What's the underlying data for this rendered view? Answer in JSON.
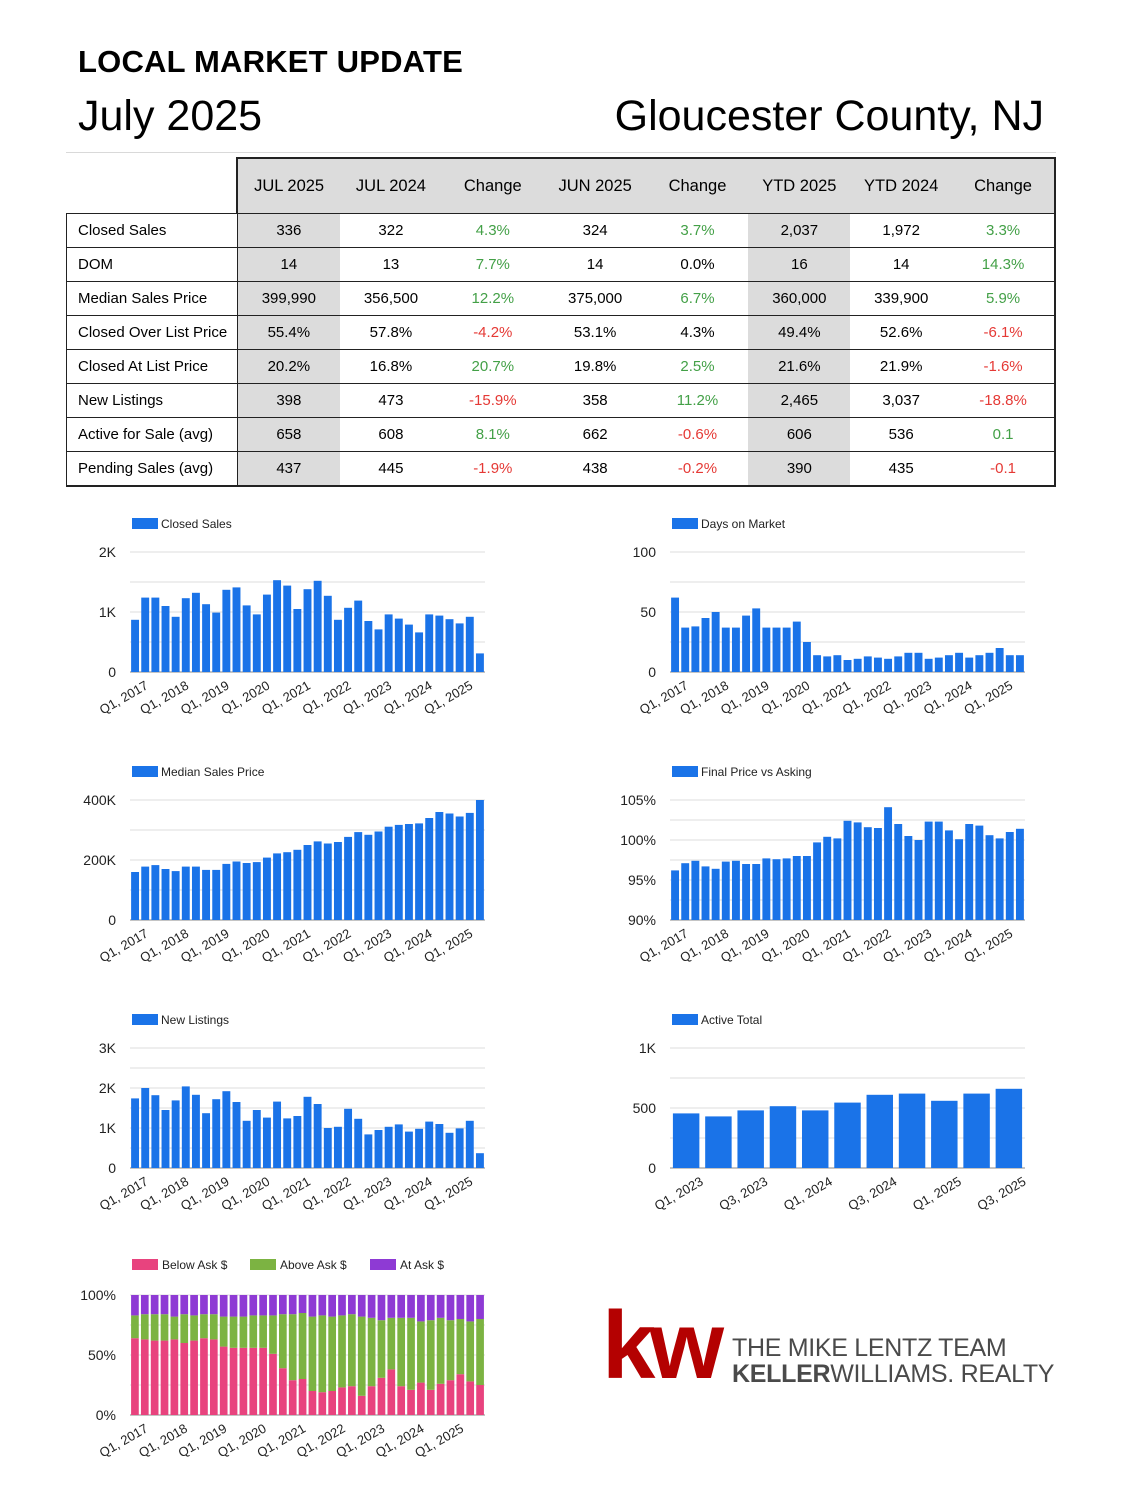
{
  "header": {
    "title": "LOCAL MARKET UPDATE",
    "month": "July 2025",
    "location": "Gloucester County, NJ"
  },
  "table": {
    "columns": [
      "JUL 2025",
      "JUL 2024",
      "Change",
      "JUN 2025",
      "Change",
      "YTD 2025",
      "YTD 2024",
      "Change"
    ],
    "rows": [
      {
        "label": "Closed Sales",
        "values": [
          "336",
          "322",
          "4.3%",
          "324",
          "3.7%",
          "2,037",
          "1,972",
          "3.3%"
        ],
        "colors": [
          "",
          "",
          "pos",
          "",
          "pos",
          "",
          "",
          "pos"
        ]
      },
      {
        "label": "DOM",
        "values": [
          "14",
          "13",
          "7.7%",
          "14",
          "0.0%",
          "16",
          "14",
          "14.3%"
        ],
        "colors": [
          "",
          "",
          "pos",
          "",
          "",
          "",
          "",
          "pos"
        ]
      },
      {
        "label": "Median Sales Price",
        "values": [
          "399,990",
          "356,500",
          "12.2%",
          "375,000",
          "6.7%",
          "360,000",
          "339,900",
          "5.9%"
        ],
        "colors": [
          "",
          "",
          "pos",
          "",
          "pos",
          "",
          "",
          "pos"
        ]
      },
      {
        "label": "Closed Over List Price",
        "values": [
          "55.4%",
          "57.8%",
          "-4.2%",
          "53.1%",
          "4.3%",
          "49.4%",
          "52.6%",
          "-6.1%"
        ],
        "colors": [
          "",
          "",
          "neg",
          "",
          "",
          "",
          "",
          "neg"
        ]
      },
      {
        "label": "Closed At List Price",
        "values": [
          "20.2%",
          "16.8%",
          "20.7%",
          "19.8%",
          "2.5%",
          "21.6%",
          "21.9%",
          "-1.6%"
        ],
        "colors": [
          "",
          "",
          "pos",
          "",
          "pos",
          "",
          "",
          "neg"
        ]
      },
      {
        "label": "New Listings",
        "values": [
          "398",
          "473",
          "-15.9%",
          "358",
          "11.2%",
          "2,465",
          "3,037",
          "-18.8%"
        ],
        "colors": [
          "",
          "",
          "neg",
          "",
          "pos",
          "",
          "",
          "neg"
        ]
      },
      {
        "label": "Active for Sale (avg)",
        "values": [
          "658",
          "608",
          "8.1%",
          "662",
          "-0.6%",
          "606",
          "536",
          "0.1"
        ],
        "colors": [
          "",
          "",
          "pos",
          "",
          "neg",
          "",
          "",
          "pos"
        ]
      },
      {
        "label": "Pending Sales (avg)",
        "values": [
          "437",
          "445",
          "-1.9%",
          "438",
          "-0.2%",
          "390",
          "435",
          "-0.1"
        ],
        "colors": [
          "",
          "",
          "neg",
          "",
          "neg",
          "",
          "",
          "neg"
        ]
      }
    ]
  },
  "colors": {
    "bar": "#1a73e8",
    "below_ask": "#e8437e",
    "above_ask": "#7cb342",
    "at_ask": "#8e3ad4",
    "positive": "#43a047",
    "negative": "#e53935",
    "kw_red": "#b40101",
    "gridline": "#dddddd"
  },
  "chart_data": [
    {
      "id": "closed-sales",
      "type": "bar",
      "legend": [
        "Closed Sales"
      ],
      "ylim": [
        0,
        2000
      ],
      "yticks": [
        "0",
        "1K",
        "2K"
      ],
      "xticks": [
        "Q1, 2017",
        "Q1, 2018",
        "Q1, 2019",
        "Q1, 2020",
        "Q1, 2021",
        "Q1, 2022",
        "Q1, 2023",
        "Q1, 2024",
        "Q1, 2025"
      ],
      "values": [
        870,
        1240,
        1240,
        1100,
        920,
        1230,
        1320,
        1130,
        990,
        1370,
        1410,
        1110,
        960,
        1290,
        1530,
        1440,
        1050,
        1380,
        1520,
        1270,
        870,
        1070,
        1190,
        850,
        710,
        960,
        890,
        790,
        660,
        960,
        940,
        880,
        810,
        920,
        310
      ]
    },
    {
      "id": "days-on-market",
      "type": "bar",
      "legend": [
        "Days on Market"
      ],
      "ylim": [
        0,
        100
      ],
      "yticks": [
        "0",
        "50",
        "100"
      ],
      "xticks": [
        "Q1, 2017",
        "Q1, 2018",
        "Q1, 2019",
        "Q1, 2020",
        "Q1, 2021",
        "Q1, 2022",
        "Q1, 2023",
        "Q1, 2024",
        "Q1, 2025"
      ],
      "values": [
        62,
        37,
        38,
        45,
        50,
        37,
        37,
        47,
        53,
        37,
        37,
        37,
        42,
        25,
        14,
        13,
        14,
        10,
        11,
        13,
        12,
        11,
        13,
        16,
        16,
        11,
        12,
        14,
        16,
        12,
        14,
        16,
        20,
        14,
        14
      ]
    },
    {
      "id": "median-sales-price",
      "type": "bar",
      "legend": [
        "Median Sales Price"
      ],
      "ylim": [
        0,
        400000
      ],
      "yticks": [
        "0",
        "200K",
        "400K"
      ],
      "xticks": [
        "Q1, 2017",
        "Q1, 2018",
        "Q1, 2019",
        "Q1, 2020",
        "Q1, 2021",
        "Q1, 2022",
        "Q1, 2023",
        "Q1, 2024",
        "Q1, 2025"
      ],
      "values": [
        160000,
        178000,
        183000,
        170000,
        163000,
        178000,
        178000,
        167000,
        167000,
        187000,
        195000,
        190000,
        193000,
        208000,
        222000,
        226000,
        234000,
        250000,
        262000,
        255000,
        260000,
        277000,
        293000,
        284000,
        295000,
        311000,
        317000,
        320000,
        322000,
        340000,
        360000,
        355000,
        345000,
        357000,
        400000
      ]
    },
    {
      "id": "final-price-vs-asking",
      "type": "bar",
      "legend": [
        "Final Price vs Asking"
      ],
      "ylim": [
        90,
        105
      ],
      "yticks": [
        "90%",
        "95%",
        "100%",
        "105%"
      ],
      "xticks": [
        "Q1, 2017",
        "Q1, 2018",
        "Q1, 2019",
        "Q1, 2020",
        "Q1, 2021",
        "Q1, 2022",
        "Q1, 2023",
        "Q1, 2024",
        "Q1, 2025"
      ],
      "values": [
        96.2,
        97.1,
        97.4,
        96.7,
        96.4,
        97.3,
        97.4,
        97.0,
        97.0,
        97.7,
        97.6,
        97.7,
        98.0,
        98.0,
        99.7,
        100.4,
        100.2,
        102.4,
        102.2,
        101.6,
        101.5,
        104.1,
        102.0,
        100.5,
        100.0,
        102.3,
        102.3,
        101.2,
        100.1,
        102.0,
        101.8,
        100.6,
        100.2,
        101.0,
        101.4
      ]
    },
    {
      "id": "new-listings",
      "type": "bar",
      "legend": [
        "New Listings"
      ],
      "ylim": [
        0,
        3000
      ],
      "yticks": [
        "0",
        "1K",
        "2K",
        "3K"
      ],
      "xticks": [
        "Q1, 2017",
        "Q1, 2018",
        "Q1, 2019",
        "Q1, 2020",
        "Q1, 2021",
        "Q1, 2022",
        "Q1, 2023",
        "Q1, 2024",
        "Q1, 2025"
      ],
      "values": [
        1740,
        2000,
        1820,
        1450,
        1690,
        2040,
        1830,
        1370,
        1720,
        1920,
        1650,
        1180,
        1450,
        1260,
        1660,
        1240,
        1300,
        1780,
        1600,
        1000,
        1030,
        1480,
        1230,
        840,
        950,
        1030,
        1090,
        910,
        980,
        1160,
        1100,
        880,
        990,
        1180,
        370
      ]
    },
    {
      "id": "active-total",
      "type": "bar",
      "legend": [
        "Active Total"
      ],
      "ylim": [
        0,
        1000
      ],
      "yticks": [
        "0",
        "500",
        "1K"
      ],
      "xticks": [
        "Q1, 2023",
        "Q3, 2023",
        "Q1, 2024",
        "Q3, 2024",
        "Q1, 2025",
        "Q3, 2025"
      ],
      "values": [
        455,
        430,
        480,
        515,
        480,
        545,
        610,
        620,
        560,
        620,
        660
      ]
    },
    {
      "id": "ask-breakdown",
      "type": "bar",
      "stacked": true,
      "ylim": [
        0,
        100
      ],
      "yticks": [
        "0%",
        "50%",
        "100%"
      ],
      "xticks": [
        "Q1, 2017",
        "Q1, 2018",
        "Q1, 2019",
        "Q1, 2020",
        "Q1, 2021",
        "Q1, 2022",
        "Q1, 2023",
        "Q1, 2024",
        "Q1, 2025"
      ],
      "series": [
        {
          "name": "Below Ask $",
          "values": [
            64,
            63,
            62,
            62,
            63,
            60,
            62,
            64,
            63,
            57,
            56,
            56,
            56,
            56,
            51,
            39,
            29,
            30,
            20,
            19,
            20,
            23,
            24,
            16,
            24,
            31,
            38,
            24,
            21,
            27,
            21,
            26,
            29,
            34,
            28,
            25
          ]
        },
        {
          "name": "Above Ask $",
          "values": [
            19,
            21,
            22,
            22,
            19,
            24,
            21,
            20,
            21,
            25,
            26,
            26,
            27,
            27,
            32,
            45,
            55,
            55,
            62,
            64,
            62,
            60,
            60,
            66,
            57,
            48,
            43,
            57,
            60,
            51,
            58,
            55,
            50,
            46,
            50,
            55
          ]
        },
        {
          "name": "At Ask $",
          "values": [
            17,
            16,
            16,
            16,
            18,
            16,
            17,
            16,
            16,
            18,
            18,
            18,
            17,
            17,
            17,
            16,
            16,
            15,
            18,
            17,
            18,
            17,
            16,
            18,
            19,
            21,
            19,
            19,
            19,
            22,
            21,
            19,
            21,
            20,
            22,
            20
          ]
        }
      ]
    }
  ],
  "branding": {
    "logo_letters": "kw",
    "team": "THE MIKE LENTZ TEAM",
    "company_bold": "KELLER",
    "company_rest": "WILLIAMS.",
    "company_suffix": " REALTY"
  }
}
